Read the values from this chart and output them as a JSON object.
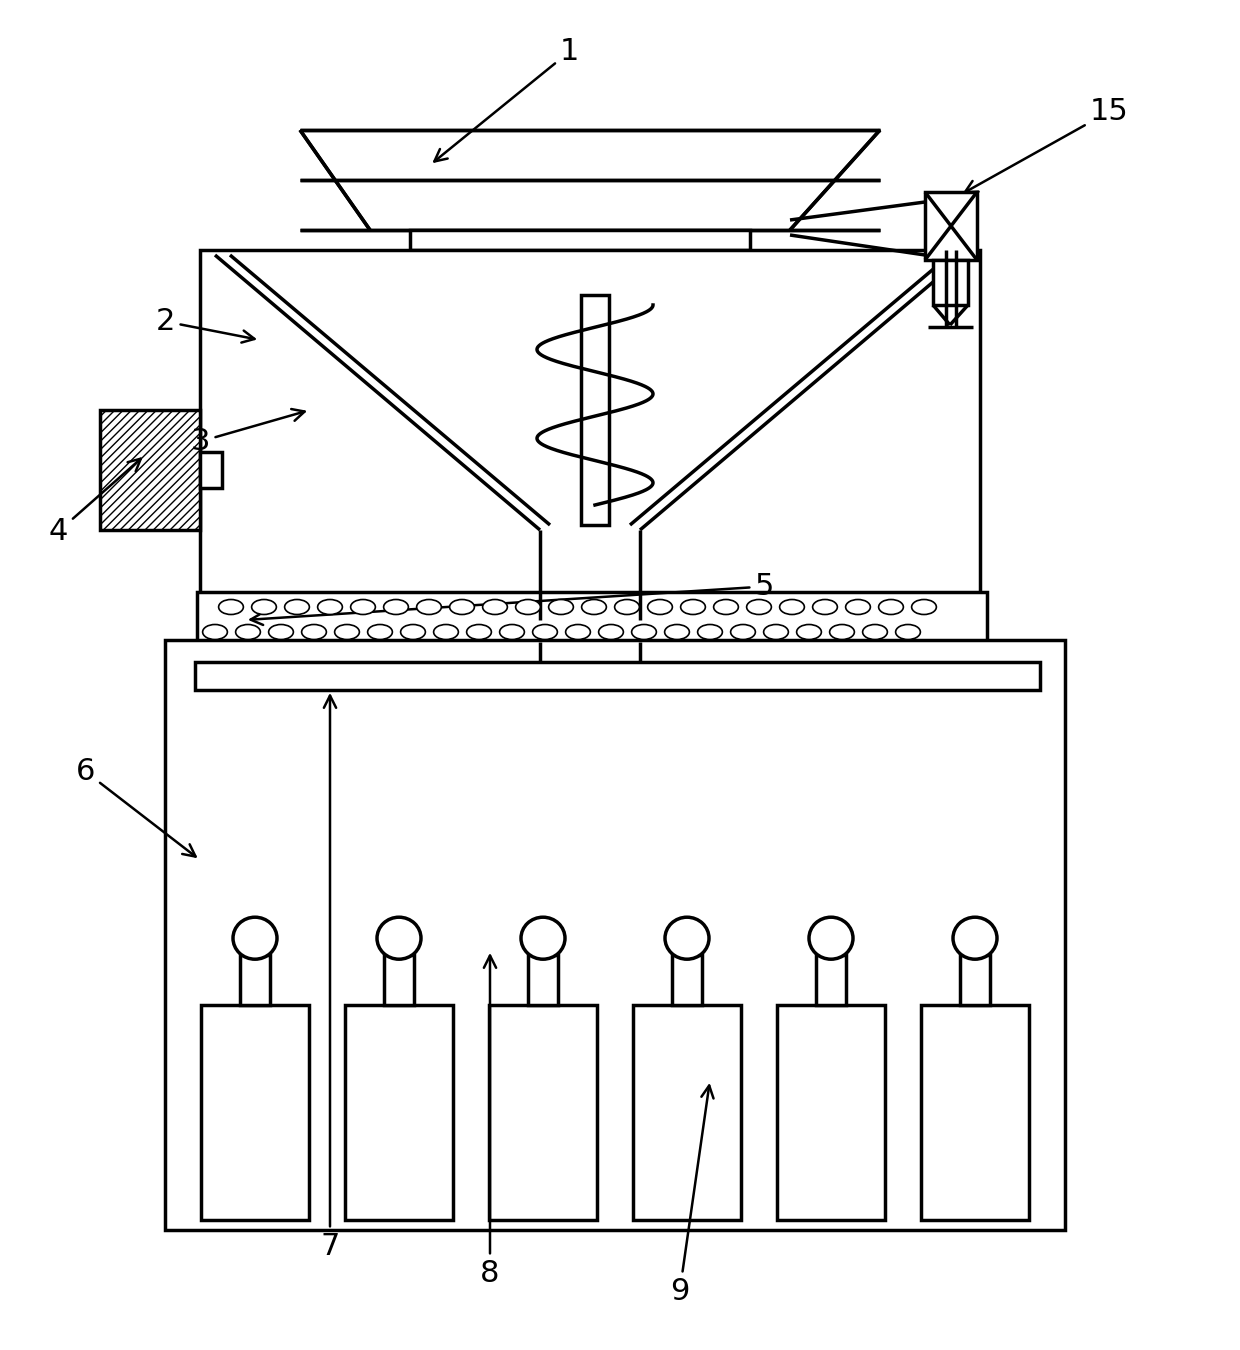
{
  "bg_color": "#ffffff",
  "line_color": "#000000",
  "lw": 2.5,
  "lw_thin": 1.5,
  "fig_width": 12.4,
  "fig_height": 13.5,
  "label_fontsize": 22
}
